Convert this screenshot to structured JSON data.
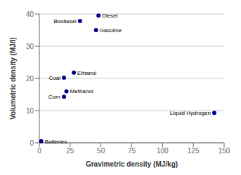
{
  "chart_data": {
    "type": "scatter",
    "xlabel": "Gravimetric density (MJ/kg)",
    "ylabel": "Volumetric density (MJ/l)",
    "points": [
      {
        "label": "Diesel",
        "x": 48,
        "y": 39.5
      },
      {
        "label": "Gasoline",
        "x": 46,
        "y": 35.0
      },
      {
        "label": "Biodiesel",
        "x": 33,
        "y": 37.8
      },
      {
        "label": "Ethanol",
        "x": 28,
        "y": 21.8
      },
      {
        "label": "Coal",
        "x": 20,
        "y": 20.2
      },
      {
        "label": "Methanol",
        "x": 22,
        "y": 16.0
      },
      {
        "label": "Corn",
        "x": 20,
        "y": 14.3
      },
      {
        "label": "Liquid Hydrogen",
        "x": 142,
        "y": 9.3
      },
      {
        "label": "Batteries",
        "x": 1.5,
        "y": 0.5
      }
    ],
    "color": "#00008B",
    "xlim": [
      0,
      150
    ],
    "ylim": [
      0,
      40
    ],
    "xticks": [
      0,
      25,
      50,
      75,
      100,
      125,
      150
    ],
    "yticks": [
      0,
      10,
      20,
      30,
      40
    ],
    "grid": true
  }
}
